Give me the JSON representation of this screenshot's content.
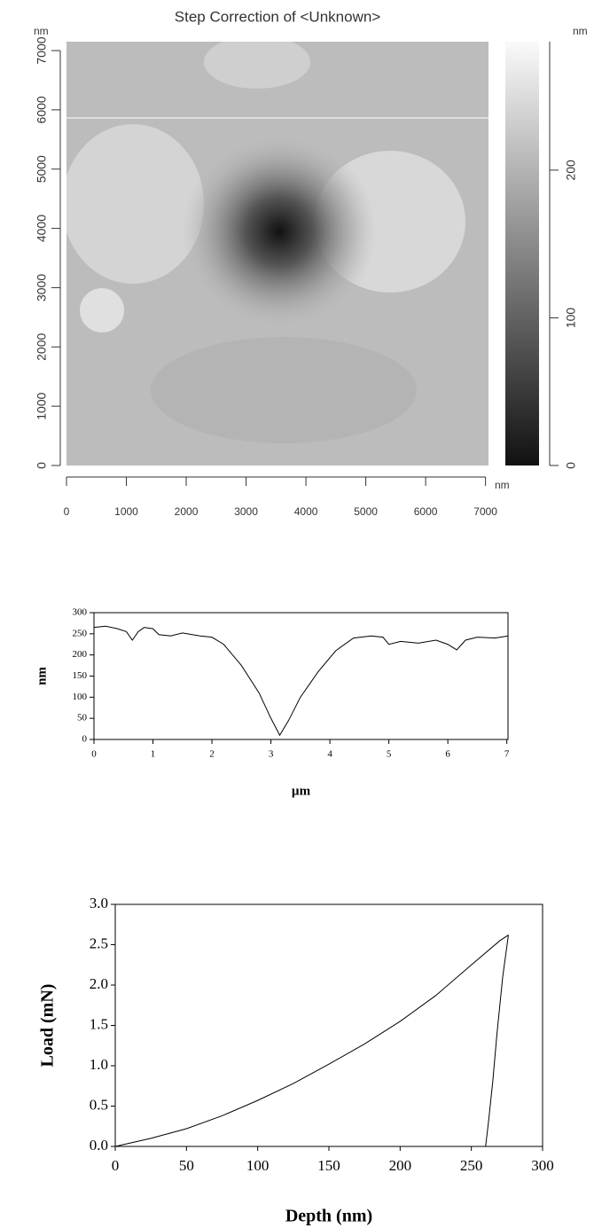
{
  "chart_data": [
    {
      "type": "image",
      "title": "Step Correction of <Unknown>",
      "x_unit": "nm",
      "y_unit": "nm",
      "colorbar_unit": "nm",
      "xlim": [
        0,
        7050
      ],
      "xticks": [
        0,
        1000,
        2000,
        3000,
        4000,
        5000,
        6000,
        7000
      ],
      "ylim": [
        0,
        7150
      ],
      "yticks": [
        0,
        1000,
        2000,
        3000,
        4000,
        5000,
        6000,
        7000
      ],
      "clim": [
        0,
        287
      ],
      "cticks": [
        0,
        100,
        200
      ]
    },
    {
      "type": "line",
      "xlabel": "µm",
      "ylabel": "nm",
      "xlim": [
        0,
        7.02
      ],
      "xticks": [
        0,
        1,
        2,
        3,
        4,
        5,
        6,
        7
      ],
      "ylim": [
        0,
        300
      ],
      "yticks": [
        0,
        50,
        100,
        150,
        200,
        250,
        300
      ],
      "series": [
        {
          "color": "#000000",
          "x": [
            0,
            0.2,
            0.4,
            0.55,
            0.65,
            0.75,
            0.85,
            1.0,
            1.1,
            1.3,
            1.5,
            1.8,
            2.0,
            2.2,
            2.5,
            2.8,
            3.0,
            3.15,
            3.3,
            3.5,
            3.8,
            4.1,
            4.4,
            4.7,
            4.9,
            5.0,
            5.2,
            5.5,
            5.8,
            6.0,
            6.15,
            6.3,
            6.5,
            6.8,
            7.02
          ],
          "values": [
            265,
            268,
            262,
            255,
            235,
            255,
            265,
            262,
            248,
            245,
            252,
            245,
            242,
            225,
            175,
            110,
            50,
            10,
            45,
            100,
            160,
            210,
            240,
            245,
            242,
            225,
            232,
            228,
            235,
            225,
            212,
            235,
            242,
            240,
            245
          ]
        }
      ]
    },
    {
      "type": "line",
      "xlabel": "Depth (nm)",
      "ylabel": "Load (mN)",
      "xlim": [
        0,
        300
      ],
      "xticks": [
        0,
        50,
        100,
        150,
        200,
        250,
        300
      ],
      "ylim": [
        0,
        3
      ],
      "yticks": [
        {
          "value": 0,
          "label": "0.0"
        },
        0.5,
        {
          "value": 1,
          "label": "1.0"
        },
        1.5,
        {
          "value": 2,
          "label": "2.0"
        },
        2.5,
        {
          "value": 3,
          "label": "3.0"
        }
      ],
      "series": [
        {
          "color": "#000000",
          "x": [
            0,
            25,
            50,
            75,
            100,
            125,
            150,
            175,
            200,
            225,
            250,
            270,
            276
          ],
          "values": [
            0,
            0.1,
            0.22,
            0.38,
            0.57,
            0.78,
            1.02,
            1.27,
            1.55,
            1.87,
            2.25,
            2.55,
            2.62
          ]
        },
        {
          "color": "#000000",
          "x": [
            276,
            272,
            268,
            265,
            262,
            260
          ],
          "values": [
            2.62,
            2.1,
            1.4,
            0.8,
            0.3,
            0
          ]
        }
      ]
    }
  ]
}
